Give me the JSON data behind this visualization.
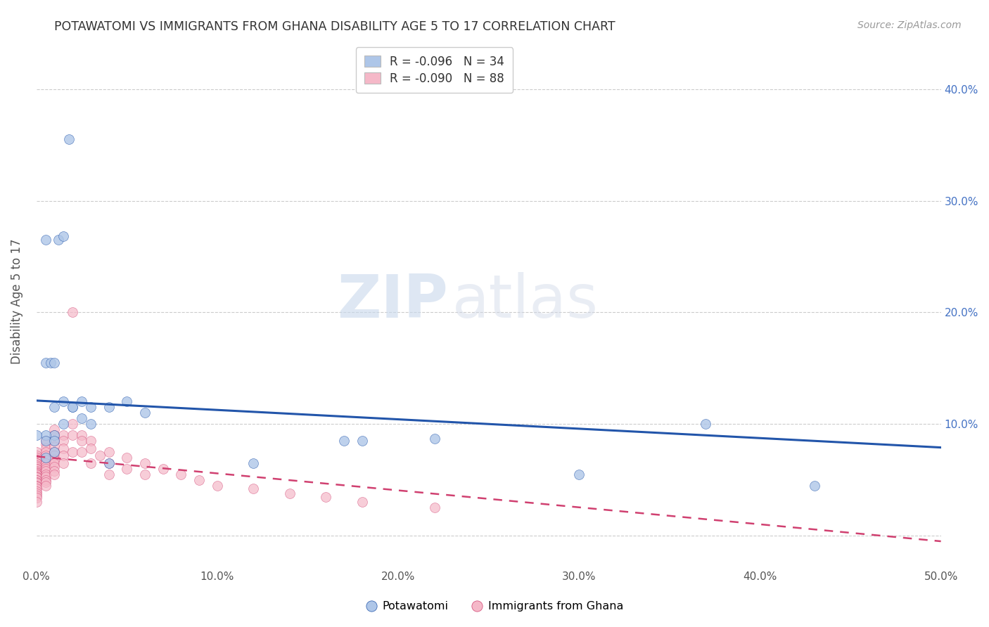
{
  "title": "POTAWATOMI VS IMMIGRANTS FROM GHANA DISABILITY AGE 5 TO 17 CORRELATION CHART",
  "source": "Source: ZipAtlas.com",
  "ylabel_left": "Disability Age 5 to 17",
  "xlim": [
    0,
    0.5
  ],
  "ylim": [
    -0.025,
    0.445
  ],
  "yticks_right": [
    0.0,
    0.1,
    0.2,
    0.3,
    0.4
  ],
  "ytick_right_labels": [
    "",
    "10.0%",
    "20.0%",
    "30.0%",
    "40.0%"
  ],
  "xticks": [
    0.0,
    0.1,
    0.2,
    0.3,
    0.4,
    0.5
  ],
  "blue_color": "#aec6e8",
  "pink_color": "#f5b8c8",
  "blue_line_color": "#2255aa",
  "pink_line_color": "#d04070",
  "watermark_zip": "ZIP",
  "watermark_atlas": "atlas",
  "blue_scatter_x": [
    0.018,
    0.012,
    0.015,
    0.005,
    0.005,
    0.008,
    0.01,
    0.01,
    0.015,
    0.02,
    0.025,
    0.03,
    0.025,
    0.02,
    0.015,
    0.01,
    0.005,
    0.0,
    0.005,
    0.01,
    0.17,
    0.18,
    0.12,
    0.04,
    0.37,
    0.22,
    0.3,
    0.43,
    0.005,
    0.01,
    0.03,
    0.04,
    0.06,
    0.05
  ],
  "blue_scatter_y": [
    0.355,
    0.265,
    0.268,
    0.265,
    0.155,
    0.155,
    0.155,
    0.115,
    0.12,
    0.115,
    0.12,
    0.115,
    0.105,
    0.115,
    0.1,
    0.09,
    0.09,
    0.09,
    0.085,
    0.085,
    0.085,
    0.085,
    0.065,
    0.065,
    0.1,
    0.087,
    0.055,
    0.045,
    0.07,
    0.075,
    0.1,
    0.115,
    0.11,
    0.12
  ],
  "pink_scatter_x": [
    0.0,
    0.0,
    0.0,
    0.0,
    0.0,
    0.0,
    0.0,
    0.0,
    0.0,
    0.0,
    0.0,
    0.0,
    0.0,
    0.0,
    0.0,
    0.0,
    0.0,
    0.0,
    0.0,
    0.0,
    0.0,
    0.0,
    0.0,
    0.0,
    0.0,
    0.0,
    0.0,
    0.0,
    0.0,
    0.0,
    0.005,
    0.005,
    0.005,
    0.005,
    0.005,
    0.005,
    0.005,
    0.005,
    0.005,
    0.005,
    0.005,
    0.005,
    0.005,
    0.005,
    0.005,
    0.01,
    0.01,
    0.01,
    0.01,
    0.01,
    0.01,
    0.01,
    0.01,
    0.01,
    0.01,
    0.01,
    0.015,
    0.015,
    0.015,
    0.015,
    0.015,
    0.02,
    0.02,
    0.02,
    0.02,
    0.025,
    0.025,
    0.025,
    0.03,
    0.03,
    0.03,
    0.035,
    0.04,
    0.04,
    0.04,
    0.05,
    0.05,
    0.06,
    0.06,
    0.07,
    0.08,
    0.09,
    0.1,
    0.12,
    0.14,
    0.16,
    0.18,
    0.22
  ],
  "pink_scatter_y": [
    0.075,
    0.072,
    0.07,
    0.068,
    0.068,
    0.065,
    0.065,
    0.063,
    0.062,
    0.06,
    0.06,
    0.058,
    0.057,
    0.056,
    0.055,
    0.055,
    0.053,
    0.052,
    0.05,
    0.05,
    0.048,
    0.047,
    0.045,
    0.044,
    0.042,
    0.04,
    0.038,
    0.036,
    0.034,
    0.03,
    0.085,
    0.082,
    0.078,
    0.075,
    0.072,
    0.068,
    0.065,
    0.062,
    0.06,
    0.058,
    0.055,
    0.053,
    0.05,
    0.048,
    0.045,
    0.095,
    0.09,
    0.085,
    0.08,
    0.075,
    0.072,
    0.068,
    0.065,
    0.062,
    0.058,
    0.055,
    0.09,
    0.085,
    0.078,
    0.072,
    0.065,
    0.2,
    0.1,
    0.09,
    0.075,
    0.09,
    0.085,
    0.075,
    0.085,
    0.078,
    0.065,
    0.072,
    0.075,
    0.065,
    0.055,
    0.07,
    0.06,
    0.065,
    0.055,
    0.06,
    0.055,
    0.05,
    0.045,
    0.042,
    0.038,
    0.035,
    0.03,
    0.025
  ],
  "blue_trend_x0": 0.0,
  "blue_trend_y0": 0.121,
  "blue_trend_x1": 0.5,
  "blue_trend_y1": 0.079,
  "pink_trend_x0": 0.0,
  "pink_trend_y0": 0.071,
  "pink_trend_x1": 0.5,
  "pink_trend_y1": -0.005
}
